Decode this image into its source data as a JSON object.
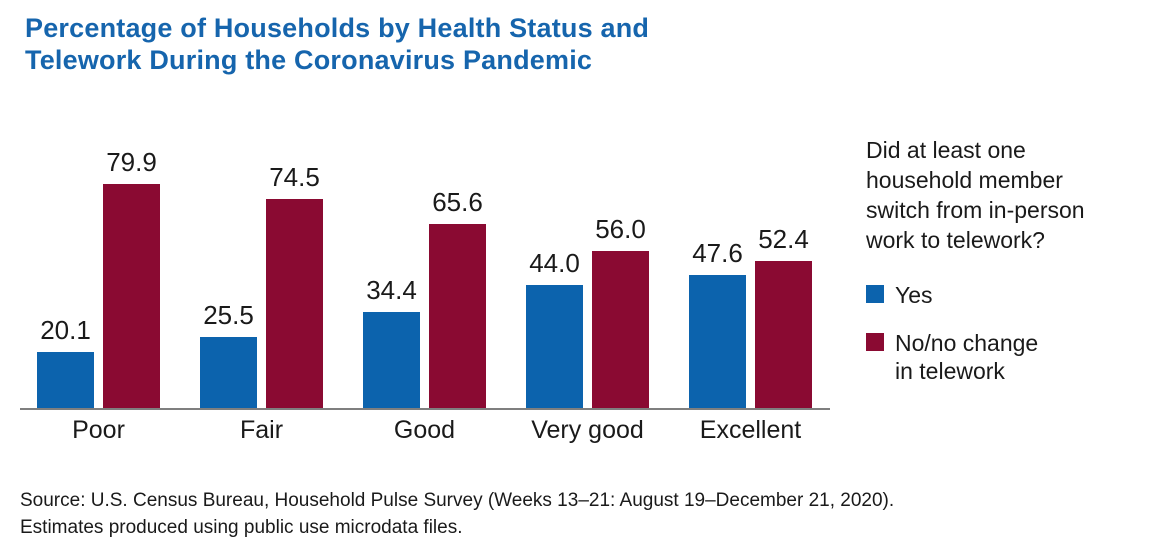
{
  "header": {
    "title": "Percentage of Households by Health Status and\nTelework During the Coronavirus Pandemic"
  },
  "chart_data": {
    "type": "bar",
    "title": "Percentage of Households by Health Status and Telework During the Coronavirus Pandemic",
    "categories": [
      "Poor",
      "Fair",
      "Good",
      "Very good",
      "Excellent"
    ],
    "series": [
      {
        "name": "Yes",
        "color": "#0c63ad",
        "values": [
          20.1,
          25.5,
          34.4,
          44.0,
          47.6
        ],
        "labels": [
          "20.1",
          "25.5",
          "34.4",
          "44.0",
          "47.6"
        ]
      },
      {
        "name": "No/no change in telework",
        "color": "#8a0a32",
        "values": [
          79.9,
          74.5,
          65.6,
          56.0,
          52.4
        ],
        "labels": [
          "79.9",
          "74.5",
          "65.6",
          "56.0",
          "52.4"
        ]
      }
    ],
    "xlabel": "",
    "ylabel": "",
    "ylim": [
      0,
      100
    ],
    "grid": false,
    "value_labels": true,
    "legend_position": "right",
    "legend_title": "Did at least one household member switch from in-person work to telework?"
  },
  "legend": {
    "title": "Did at least one\nhousehold member\nswitch from in-person\nwork to telework?",
    "items": [
      {
        "label": "Yes",
        "color": "#0c63ad"
      },
      {
        "label": "No/no change\nin telework",
        "color": "#8a0a32"
      }
    ]
  },
  "footer": {
    "source_line1": "Source: U.S. Census Bureau, Household Pulse Survey (Weeks 13–21: August 19–December 21, 2020).",
    "source_line2": "Estimates produced using public use microdata files."
  },
  "colors": {
    "title_blue": "#1665ad",
    "bar_yes_blue": "#0c63ad",
    "bar_no_red": "#8a0a32",
    "axis_gray": "#7f7f7f",
    "text_dark": "#1a1a1a"
  }
}
